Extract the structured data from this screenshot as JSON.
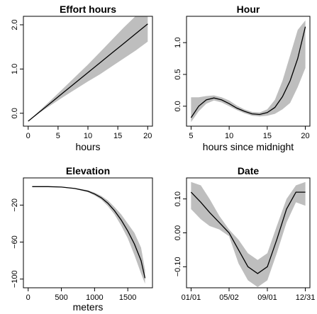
{
  "chart_data": [
    {
      "type": "line",
      "title": "Effort hours",
      "xlabel": "hours",
      "ylabel": "",
      "xlim": [
        0,
        20
      ],
      "ylim": [
        -0.2,
        2.1
      ],
      "xticks": [
        0,
        5,
        10,
        15,
        20
      ],
      "xtick_labels": [
        "0",
        "5",
        "10",
        "15",
        "20"
      ],
      "yticks": [
        0.0,
        1.0,
        2.0
      ],
      "ytick_labels": [
        "0.0",
        "1.0",
        "2.0"
      ],
      "x": [
        0,
        2,
        4,
        6,
        8,
        10,
        12,
        14,
        16,
        18,
        20
      ],
      "y": [
        -0.18,
        0.04,
        0.26,
        0.48,
        0.7,
        0.92,
        1.14,
        1.36,
        1.58,
        1.8,
        2.02
      ],
      "lower": [
        -0.18,
        0.02,
        0.2,
        0.38,
        0.55,
        0.72,
        0.88,
        1.06,
        1.24,
        1.42,
        1.62
      ],
      "upper": [
        -0.18,
        0.07,
        0.32,
        0.58,
        0.84,
        1.1,
        1.38,
        1.66,
        1.94,
        2.2,
        2.4
      ]
    },
    {
      "type": "line",
      "title": "Hour",
      "xlabel": "hours since midnight",
      "ylabel": "",
      "xlim": [
        5,
        20
      ],
      "ylim": [
        -0.25,
        1.35
      ],
      "xticks": [
        5,
        10,
        15,
        20
      ],
      "xtick_labels": [
        "5",
        "10",
        "15",
        "20"
      ],
      "yticks": [
        0.0,
        0.5,
        1.0
      ],
      "ytick_labels": [
        "0.0",
        "0.5",
        "1.0"
      ],
      "x": [
        5,
        6,
        7,
        8,
        9,
        10,
        11,
        12,
        13,
        14,
        15,
        16,
        17,
        18,
        19,
        20
      ],
      "y": [
        -0.18,
        0.0,
        0.1,
        0.13,
        0.1,
        0.04,
        -0.03,
        -0.08,
        -0.12,
        -0.13,
        -0.1,
        -0.02,
        0.15,
        0.4,
        0.75,
        1.25
      ],
      "lower": [
        -0.25,
        -0.08,
        0.04,
        0.09,
        0.06,
        0.0,
        -0.06,
        -0.11,
        -0.15,
        -0.16,
        -0.15,
        -0.12,
        -0.05,
        0.05,
        0.3,
        0.6
      ],
      "upper": [
        0.14,
        0.14,
        0.16,
        0.17,
        0.14,
        0.09,
        0.01,
        -0.05,
        -0.09,
        -0.1,
        -0.05,
        0.1,
        0.4,
        0.8,
        1.2,
        1.35
      ]
    },
    {
      "type": "line",
      "title": "Elevation",
      "xlabel": "meters",
      "ylabel": "",
      "xlim": [
        0,
        1800
      ],
      "ylim": [
        -105,
        5
      ],
      "xticks": [
        0,
        500,
        1000,
        1500
      ],
      "xtick_labels": [
        "0",
        "500",
        "1000",
        "1500"
      ],
      "yticks": [
        -100,
        -60,
        -20
      ],
      "ytick_labels": [
        "−100",
        "−60",
        "−20"
      ],
      "x": [
        60,
        300,
        500,
        700,
        900,
        1000,
        1100,
        1200,
        1300,
        1400,
        1500,
        1600,
        1700,
        1760
      ],
      "y": [
        0,
        0,
        -0.5,
        -2,
        -5,
        -8,
        -12,
        -18,
        -26,
        -36,
        -48,
        -62,
        -80,
        -99
      ],
      "lower": [
        0,
        0,
        -0.7,
        -2.5,
        -6,
        -9.5,
        -14,
        -21,
        -30,
        -42,
        -56,
        -74,
        -94,
        -105
      ],
      "upper": [
        0,
        0,
        -0.3,
        -1.5,
        -4,
        -6.5,
        -10,
        -15,
        -22,
        -30,
        -40,
        -50,
        -66,
        -90
      ]
    },
    {
      "type": "line",
      "title": "Date",
      "xlabel": "",
      "ylabel": "",
      "xlim": [
        "01/01",
        "12/31"
      ],
      "ylim": [
        -0.15,
        0.15
      ],
      "xticks": [
        "01/01",
        "05/02",
        "09/01",
        "12/31"
      ],
      "xtick_labels": [
        "01/01",
        "05/02",
        "09/01",
        "12/31"
      ],
      "yticks": [
        -0.1,
        0.0,
        0.1
      ],
      "ytick_labels": [
        "−0.10",
        "0.00",
        "0.10"
      ],
      "x": [
        "01/01",
        "02/01",
        "03/01",
        "04/01",
        "05/02",
        "06/01",
        "07/01",
        "08/01",
        "09/01",
        "10/01",
        "11/01",
        "12/01",
        "12/31"
      ],
      "y": [
        0.12,
        0.09,
        0.06,
        0.03,
        0.0,
        -0.05,
        -0.1,
        -0.12,
        -0.1,
        -0.02,
        0.07,
        0.12,
        0.12
      ],
      "lower": [
        0.07,
        0.04,
        0.02,
        0.01,
        -0.01,
        -0.09,
        -0.14,
        -0.16,
        -0.14,
        -0.06,
        0.03,
        0.09,
        0.08
      ],
      "upper": [
        0.15,
        0.14,
        0.1,
        0.05,
        0.01,
        -0.02,
        -0.06,
        -0.08,
        -0.06,
        0.02,
        0.1,
        0.14,
        0.15
      ]
    }
  ]
}
